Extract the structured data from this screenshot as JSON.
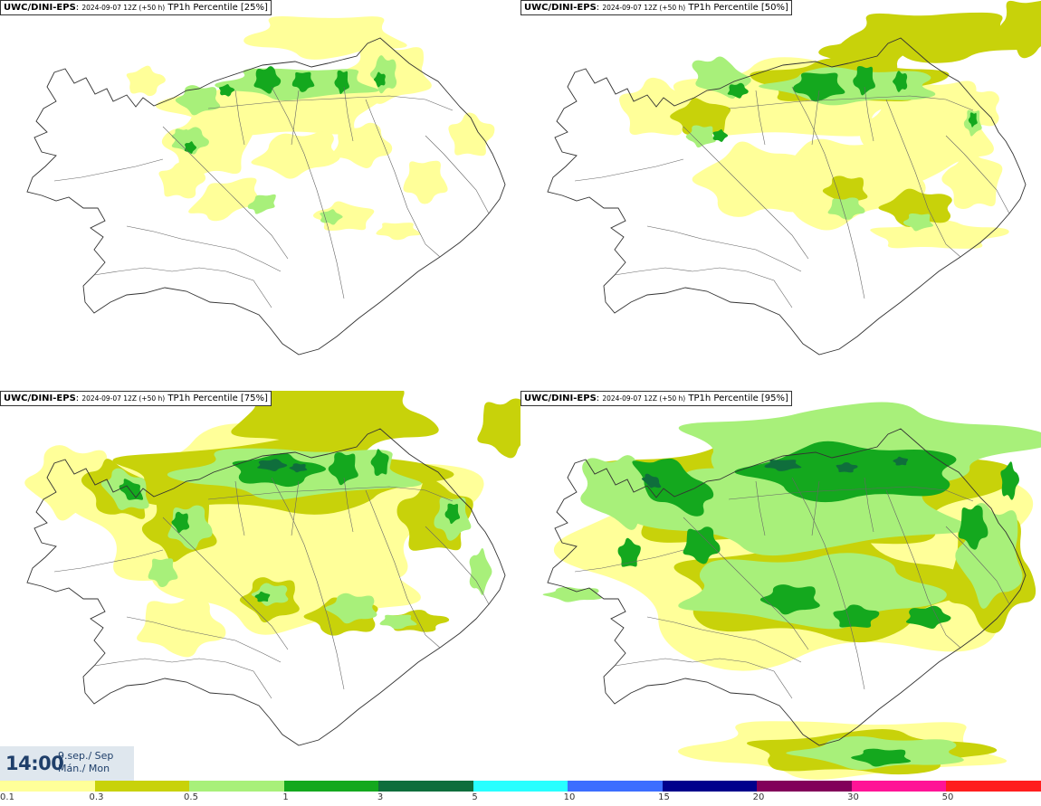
{
  "panels": [
    {
      "model": "UWC/DINI-EPS",
      "run": "2024-09-07 12Z (+50 h)",
      "product": "TP1h Percentile [25%]",
      "percentile": 25
    },
    {
      "model": "UWC/DINI-EPS",
      "run": "2024-09-07 12Z (+50 h)",
      "product": "TP1h Percentile [50%]",
      "percentile": 50
    },
    {
      "model": "UWC/DINI-EPS",
      "run": "2024-09-07 12Z (+50 h)",
      "product": "TP1h Percentile [75%]",
      "percentile": 75
    },
    {
      "model": "UWC/DINI-EPS",
      "run": "2024-09-07 12Z (+50 h)",
      "product": "TP1h Percentile [95%]",
      "percentile": 95
    }
  ],
  "valid": {
    "time": "14:00",
    "date": "9.sep./ Sep",
    "day": "Mán./ Mon"
  },
  "legend": {
    "levels": [
      "0.1",
      "0.3",
      "0.5",
      "1",
      "3",
      "5",
      "10",
      "15",
      "20",
      "30",
      "50"
    ],
    "colors": [
      "#ffff99",
      "#c8d20a",
      "#a8f07a",
      "#14a81e",
      "#0f6e3c",
      "#28ffff",
      "#3c6eff",
      "#00008c",
      "#82005a",
      "#ff1496",
      "#ff1e1e"
    ]
  }
}
